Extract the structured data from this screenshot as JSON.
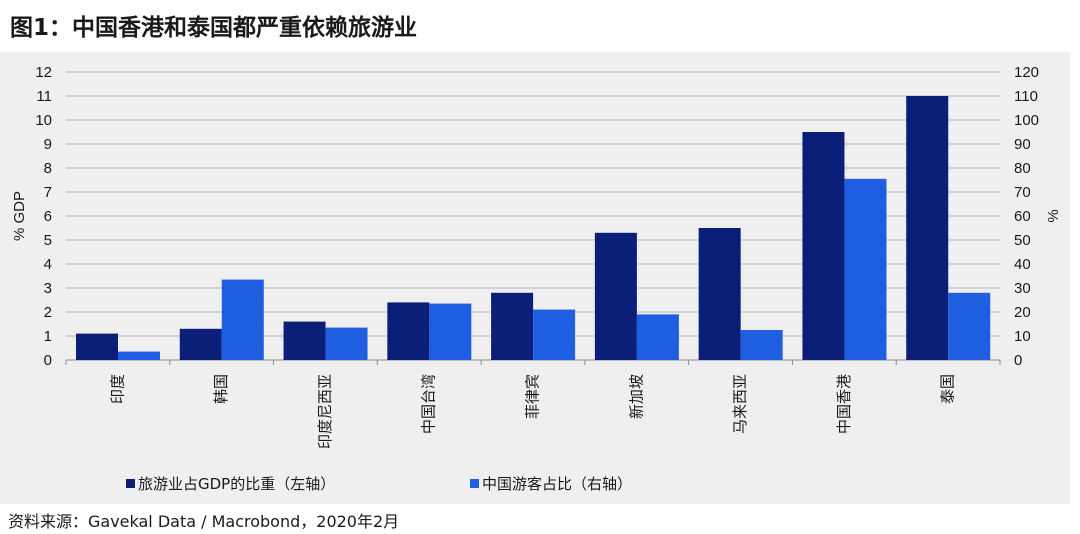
{
  "title": "图1：中国香港和泰国都严重依赖旅游业",
  "source": "资料来源：Gavekal Data / Macrobond，2020年2月",
  "colors": {
    "series1": "#0b1e78",
    "series2": "#1f5ee0",
    "grid": "#b5b5b5",
    "panel": "#efefef"
  },
  "chart_data": {
    "type": "bar",
    "categories": [
      "印度",
      "韩国",
      "印度尼西亚",
      "中国台湾",
      "菲律宾",
      "新加坡",
      "马来西亚",
      "中国香港",
      "泰国"
    ],
    "series": [
      {
        "name": "旅游业占GDP的比重（左轴）",
        "axis": "left",
        "values": [
          1.1,
          1.3,
          1.6,
          2.4,
          2.8,
          5.3,
          5.5,
          9.5,
          11.0
        ]
      },
      {
        "name": "中国游客占比（右轴）",
        "axis": "right",
        "values": [
          3.5,
          33.5,
          13.5,
          23.5,
          21,
          19,
          12.5,
          75.5,
          28
        ]
      }
    ],
    "ylabel_left": "% GDP",
    "ylabel_right": "%",
    "ylim_left": [
      0,
      12
    ],
    "ylim_right": [
      0,
      120
    ],
    "yticks_left": [
      "0",
      "1",
      "2",
      "3",
      "4",
      "5",
      "6",
      "7",
      "8",
      "9",
      "10",
      "11",
      "12"
    ],
    "yticks_right": [
      "0",
      "10",
      "20",
      "30",
      "40",
      "50",
      "60",
      "70",
      "80",
      "90",
      "100",
      "110",
      "120"
    ],
    "grid": true,
    "legend_position": "bottom"
  }
}
